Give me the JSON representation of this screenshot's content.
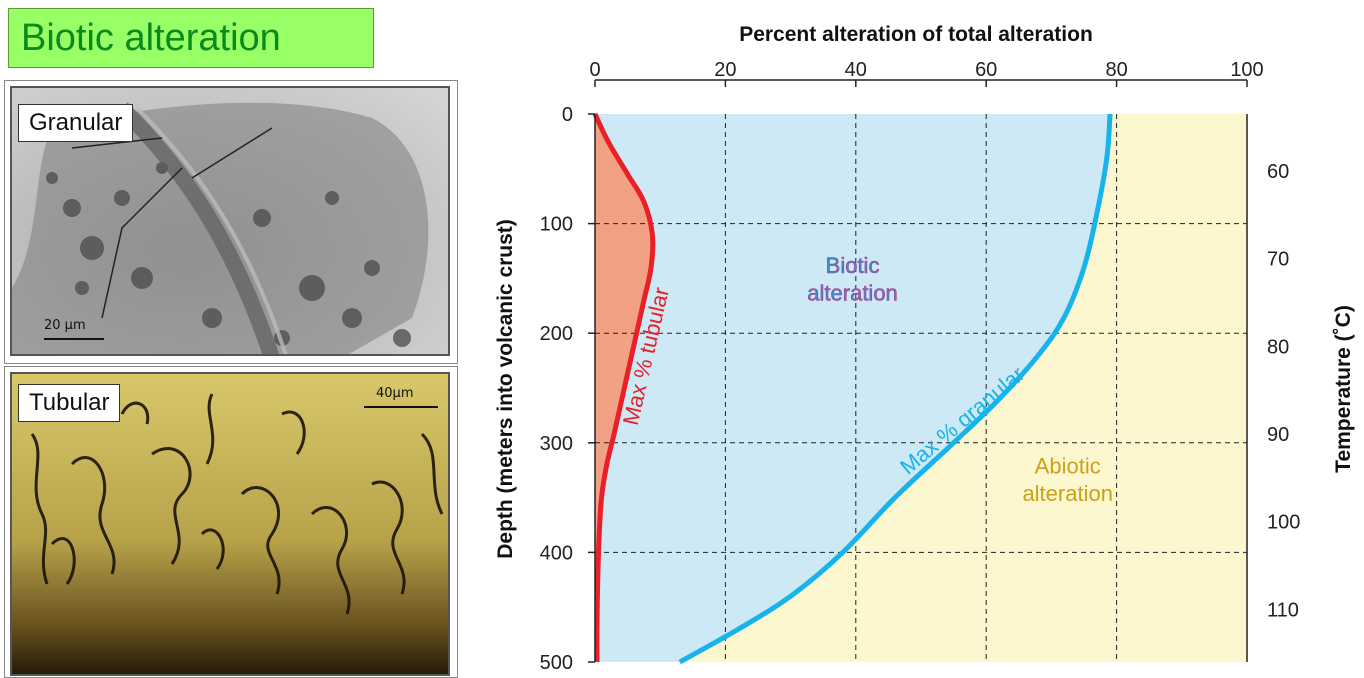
{
  "header": {
    "title": "Biotic alteration"
  },
  "photos": [
    {
      "label": "Granular",
      "scale_text": "20 μm"
    },
    {
      "label": "Tubular",
      "scale_text": "40μm"
    }
  ],
  "colors": {
    "title_bg": "#99ff66",
    "title_text": "#0a8a1a",
    "tubular_fill": "#f3a184",
    "tubular_line": "#e8202a",
    "biotic_fill": "#cde9f6",
    "granular_line": "#17b4ea",
    "abiotic_fill": "#fdf7cf",
    "abiotic_text": "#c9a21a",
    "biotic_text": "#3a8fd0"
  },
  "chart_data": {
    "type": "line",
    "title": "Percent alteration of total alteration",
    "xlabel": "Percent alteration of total alteration",
    "ylabel": "Depth (meters into volcanic crust)",
    "y2label": "Temperature (˚C)",
    "xlim": [
      0,
      100
    ],
    "ylim": [
      0,
      500
    ],
    "y_inverted": true,
    "x_ticks": [
      "0",
      "20",
      "40",
      "60",
      "80",
      "100"
    ],
    "y_ticks": [
      "0",
      "100",
      "200",
      "300",
      "400",
      "500"
    ],
    "y2_ticks": [
      {
        "label": "60",
        "depth": 52
      },
      {
        "label": "70",
        "depth": 132
      },
      {
        "label": "80",
        "depth": 212
      },
      {
        "label": "90",
        "depth": 292
      },
      {
        "label": "100",
        "depth": 372
      },
      {
        "label": "110",
        "depth": 452
      }
    ],
    "grid": true,
    "series": [
      {
        "name": "Max % tubular",
        "x": [
          0,
          2,
          5,
          7.5,
          8.8,
          8.6,
          7.5,
          6,
          4.5,
          3,
          1.8,
          1,
          0.6,
          0.4,
          0.3,
          0.3
        ],
        "y": [
          0,
          25,
          55,
          80,
          110,
          140,
          170,
          210,
          250,
          290,
          320,
          350,
          390,
          430,
          470,
          500
        ]
      },
      {
        "name": "Max % granular",
        "x": [
          79,
          78.5,
          77,
          75,
          72,
          68,
          62,
          55,
          46,
          38,
          30,
          22,
          13
        ],
        "y": [
          0,
          40,
          90,
          140,
          185,
          220,
          260,
          300,
          350,
          400,
          440,
          470,
          500
        ]
      }
    ],
    "regions": [
      "Biotic alteration",
      "Abiotic alteration"
    ],
    "annotations": {
      "tubular": "Max % tubular",
      "granular": "Max % granular",
      "biotic_line1": "Biotic",
      "biotic_line2": "alteration",
      "abiotic_line1": "Abiotic",
      "abiotic_line2": "alteration"
    }
  }
}
